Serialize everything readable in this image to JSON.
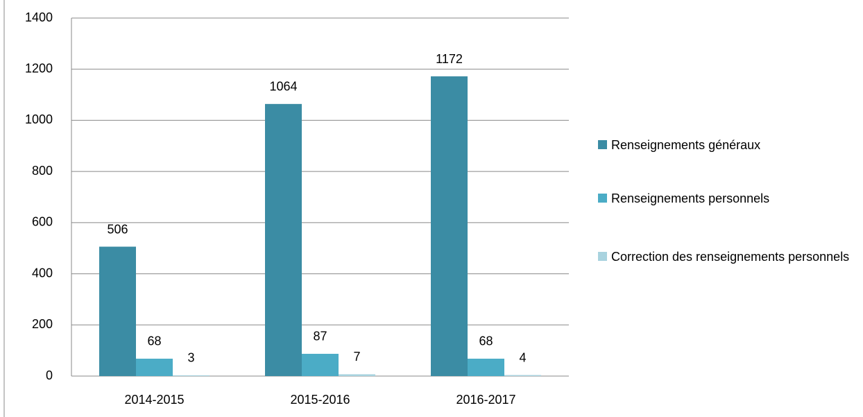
{
  "chart_data": {
    "type": "bar",
    "categories": [
      "2014-2015",
      "2015-2016",
      "2016-2017"
    ],
    "series": [
      {
        "name": "Renseignements généraux",
        "color": "#3b8ca4",
        "values": [
          506,
          1064,
          1172
        ]
      },
      {
        "name": "Renseignements personnels",
        "color": "#4bacc6",
        "values": [
          68,
          87,
          68
        ]
      },
      {
        "name": "Correction des renseignements personnels",
        "color": "#a9d3df",
        "values": [
          3,
          7,
          4
        ]
      }
    ],
    "ylim": [
      0,
      1400
    ],
    "yticks": [
      0,
      200,
      400,
      600,
      800,
      1000,
      1200,
      1400
    ],
    "grid": true,
    "legend": "right"
  }
}
